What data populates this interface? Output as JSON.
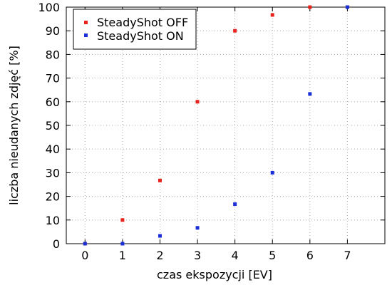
{
  "chart_data": {
    "type": "scatter",
    "xlabel": "czas ekspozycji [EV]",
    "ylabel": "liczba nieudanych zdjęć [%]",
    "xlim": [
      -0.5,
      8
    ],
    "ylim": [
      0,
      100
    ],
    "xticks": [
      0,
      1,
      2,
      3,
      4,
      5,
      6,
      7
    ],
    "yticks": [
      0,
      10,
      20,
      30,
      40,
      50,
      60,
      70,
      80,
      90,
      100
    ],
    "grid": true,
    "legend_position": "top-left",
    "series": [
      {
        "name": "SteadyShot OFF",
        "color": "#e8221c",
        "x": [
          0,
          1,
          2,
          3,
          4,
          5,
          6,
          7
        ],
        "y": [
          0,
          10,
          26.7,
          60,
          90,
          96.7,
          100,
          100
        ]
      },
      {
        "name": "SteadyShot ON",
        "color": "#1a2fd6",
        "x": [
          0,
          1,
          2,
          3,
          4,
          5,
          6,
          7
        ],
        "y": [
          0,
          0,
          3.3,
          6.7,
          16.7,
          30,
          63.3,
          100
        ]
      }
    ]
  }
}
